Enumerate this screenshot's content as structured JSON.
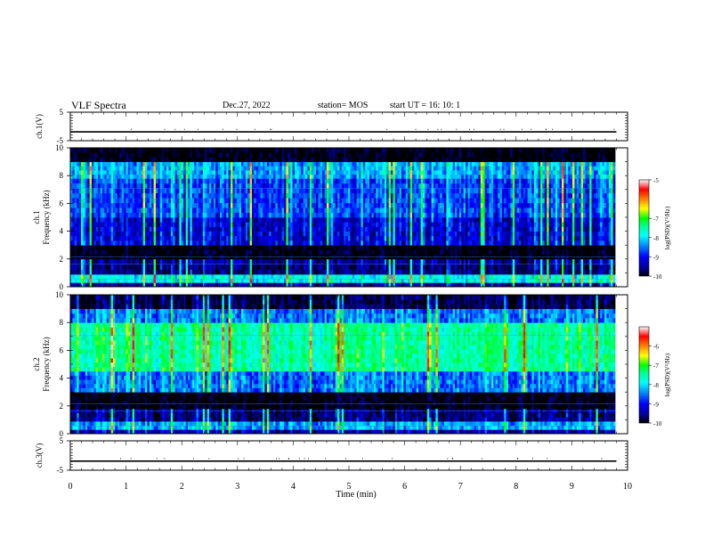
{
  "header": {
    "title": "VLF Spectra",
    "date": "Dec.27, 2022",
    "station": "station= MOS",
    "start_ut": "start  UT =   16: 10: 1"
  },
  "colors": {
    "background": "#ffffff",
    "colormap": [
      "#000000",
      "#00008c",
      "#0000ff",
      "#0090ff",
      "#00ffff",
      "#00ff90",
      "#00ff00",
      "#ffff00",
      "#ff8000",
      "#ff0000",
      "#ffffff"
    ]
  },
  "chart_data": [
    {
      "type": "line",
      "panel": "ch1-voltage",
      "ylabel": "ch.1(V)",
      "ylim": [
        -5,
        5
      ],
      "yticks": [
        "5",
        "-5"
      ],
      "series": [
        {
          "x": [
            0,
            9.8
          ],
          "values": [
            -1.9,
            -1.9
          ]
        }
      ]
    },
    {
      "type": "heatmap",
      "panel": "ch1-spectrogram",
      "ylabel_line1": "ch.1",
      "ylabel_line2": "Frequency (kHz)",
      "ylim": [
        0,
        10
      ],
      "yticks": [
        "0",
        "2",
        "4",
        "6",
        "8",
        "10"
      ],
      "data_extent_min": [
        0,
        9.8
      ],
      "colorbar": {
        "label": "log(PSD)(V²/Hz)",
        "range": [
          -10,
          -5
        ],
        "ticks": [
          "-5",
          "-7",
          "-8",
          "-9",
          "-10"
        ]
      },
      "profile": [
        {
          "f": [
            0.0,
            0.3
          ],
          "level": -9.4
        },
        {
          "f": [
            0.3,
            0.9
          ],
          "level": -8.0
        },
        {
          "f": [
            0.9,
            1.6
          ],
          "level": -9.6
        },
        {
          "f": [
            1.6,
            2.0
          ],
          "level": -9.5
        },
        {
          "f": [
            2.0,
            3.0
          ],
          "level": -10.0
        },
        {
          "f": [
            3.0,
            5.0
          ],
          "level": -9.2
        },
        {
          "f": [
            5.0,
            7.8
          ],
          "level": -8.8
        },
        {
          "f": [
            7.8,
            9.0
          ],
          "level": -8.4
        },
        {
          "f": [
            9.0,
            10.0
          ],
          "level": -10.0
        }
      ]
    },
    {
      "type": "heatmap",
      "panel": "ch2-spectrogram",
      "ylabel_line1": "ch.2",
      "ylabel_line2": "Frequency (kHz)",
      "ylim": [
        0,
        10
      ],
      "yticks": [
        "0",
        "2",
        "4",
        "6",
        "8",
        "10"
      ],
      "data_extent_min": [
        0,
        9.8
      ],
      "colorbar": {
        "label": "log(PSD)(V²/Hz)",
        "range": [
          -10,
          -5
        ],
        "ticks": [
          "-6",
          "-7",
          "-8",
          "-9",
          "-10"
        ]
      },
      "profile": [
        {
          "f": [
            0.0,
            0.3
          ],
          "level": -9.4
        },
        {
          "f": [
            0.3,
            0.9
          ],
          "level": -8.4
        },
        {
          "f": [
            0.9,
            1.8
          ],
          "level": -9.6
        },
        {
          "f": [
            1.8,
            3.0
          ],
          "level": -10.0
        },
        {
          "f": [
            3.0,
            4.5
          ],
          "level": -8.6
        },
        {
          "f": [
            4.5,
            8.0
          ],
          "level": -7.6
        },
        {
          "f": [
            8.0,
            9.0
          ],
          "level": -8.6
        },
        {
          "f": [
            9.0,
            10.0
          ],
          "level": -9.8
        }
      ]
    },
    {
      "type": "line",
      "panel": "ch3-voltage",
      "ylabel": "ch.3(V)",
      "ylim": [
        -5,
        5
      ],
      "yticks": [
        "5",
        "-5"
      ],
      "series": [
        {
          "x": [
            0,
            9.8
          ],
          "values": [
            -1.9,
            -1.9
          ]
        }
      ]
    }
  ],
  "xaxis": {
    "label": "Time (min)",
    "xlim": [
      0,
      10
    ],
    "ticks": [
      "0",
      "1",
      "2",
      "3",
      "4",
      "5",
      "6",
      "7",
      "8",
      "9",
      "10"
    ]
  }
}
